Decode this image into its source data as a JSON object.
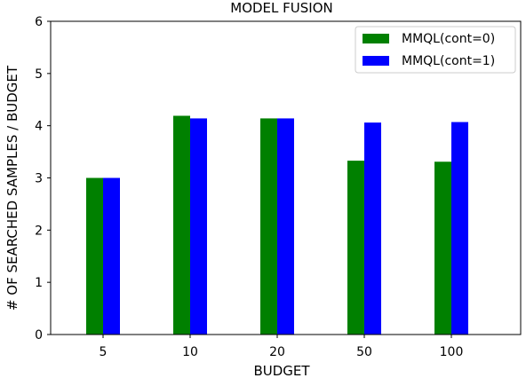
{
  "chart_data": {
    "type": "bar",
    "title": "MODEL FUSION",
    "xlabel": "BUDGET",
    "ylabel": "# OF SEARCHED SAMPLES / BUDGET",
    "categories": [
      "5",
      "10",
      "20",
      "50",
      "100"
    ],
    "series": [
      {
        "name": "MMQL(cont=0)",
        "color": "#008000",
        "values": [
          3.0,
          4.19,
          4.14,
          3.33,
          3.31
        ]
      },
      {
        "name": "MMQL(cont=1)",
        "color": "#0000ff",
        "values": [
          3.0,
          4.14,
          4.14,
          4.06,
          4.07
        ]
      }
    ],
    "ylim": [
      0,
      6
    ],
    "yticks": [
      "0",
      "1",
      "2",
      "3",
      "4",
      "5",
      "6"
    ],
    "grid": false,
    "legend_position": "top-right"
  }
}
